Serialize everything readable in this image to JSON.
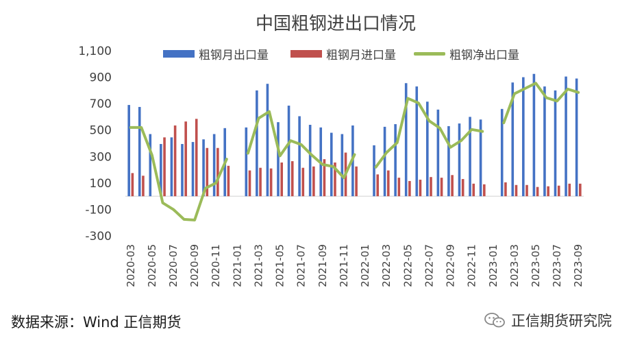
{
  "chart_data": {
    "type": "bar",
    "title": "中国粗钢进出口情况",
    "source": "数据来源：Wind  正信期货",
    "watermark": "正信期货研究院",
    "colors": {
      "export": "#4472c4",
      "import": "#c0504d",
      "net": "#9bbb59"
    },
    "legend": [
      "粗钢月出口量",
      "粗钢月进口量",
      "粗钢净出口量"
    ],
    "ylim": [
      -300,
      1100
    ],
    "yticks": [
      -300,
      -100,
      100,
      300,
      500,
      700,
      900,
      1100
    ],
    "ytick_labels": [
      "-300",
      "-100",
      "100",
      "300",
      "500",
      "700",
      "900",
      "1,100"
    ],
    "categories": [
      "2020-03",
      "2020-04",
      "2020-05",
      "2020-06",
      "2020-07",
      "2020-08",
      "2020-09",
      "2020-10",
      "2020-11",
      "2020-12",
      "2021-01",
      "2021-02",
      "2021-03",
      "2021-04",
      "2021-05",
      "2021-06",
      "2021-07",
      "2021-08",
      "2021-09",
      "2021-10",
      "2021-11",
      "2021-12",
      "2022-01",
      "2022-02",
      "2022-03",
      "2022-04",
      "2022-05",
      "2022-06",
      "2022-07",
      "2022-08",
      "2022-09",
      "2022-10",
      "2022-11",
      "2022-12",
      "2023-01",
      "2023-02",
      "2023-03",
      "2023-04",
      "2023-05",
      "2023-06",
      "2023-07",
      "2023-08",
      "2023-09"
    ],
    "xtick_labels": [
      "2020-03",
      "2020-05",
      "2020-07",
      "2020-09",
      "2020-11",
      "2021-01",
      "2021-03",
      "2021-05",
      "2021-07",
      "2021-09",
      "2021-11",
      "2022-01",
      "2022-03",
      "2022-05",
      "2022-07",
      "2022-09",
      "2022-11",
      "2023-01",
      "2023-03",
      "2023-05",
      "2023-07",
      "2023-09"
    ],
    "series": [
      {
        "name": "粗钢月出口量",
        "type": "bar",
        "values": [
          690,
          675,
          470,
          395,
          445,
          395,
          410,
          430,
          470,
          515,
          null,
          520,
          800,
          850,
          560,
          685,
          605,
          540,
          520,
          480,
          470,
          535,
          null,
          385,
          525,
          545,
          855,
          830,
          715,
          655,
          530,
          550,
          600,
          580,
          null,
          660,
          860,
          900,
          925,
          830,
          800,
          905,
          890
        ]
      },
      {
        "name": "粗钢月进口量",
        "type": "bar",
        "values": [
          175,
          155,
          null,
          445,
          535,
          565,
          585,
          365,
          365,
          230,
          null,
          195,
          215,
          210,
          255,
          265,
          215,
          225,
          280,
          255,
          330,
          225,
          null,
          165,
          195,
          140,
          115,
          125,
          145,
          140,
          160,
          130,
          95,
          90,
          null,
          105,
          85,
          85,
          70,
          75,
          80,
          95,
          95
        ]
      },
      {
        "name": "粗钢净出口量",
        "type": "line",
        "values": [
          520,
          520,
          310,
          -50,
          -100,
          -175,
          -180,
          60,
          100,
          280,
          null,
          325,
          590,
          640,
          305,
          420,
          390,
          310,
          240,
          225,
          140,
          315,
          null,
          220,
          330,
          405,
          740,
          705,
          570,
          515,
          370,
          420,
          505,
          490,
          null,
          555,
          775,
          815,
          855,
          745,
          720,
          810,
          785
        ]
      }
    ]
  }
}
